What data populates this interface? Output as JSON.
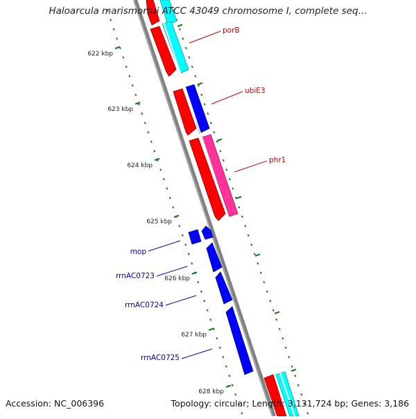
{
  "title": "Haloarcula marismortui ATCC 43049 chromosome I, complete seq...",
  "footer": {
    "accession_label": "Accession:",
    "accession": "NC_006396",
    "topology_label": "Topology:",
    "topology": "circular",
    "length_label": "Length:",
    "length": "3,131,724 bp",
    "genes_label": "Genes:",
    "genes": "3,186"
  },
  "colors": {
    "backbone": "#808080",
    "tick": "#1a7a1a",
    "label_forward": "#cc0000",
    "label_reverse": "#0000bb",
    "red": "#ff0000",
    "cyan": "#00ffff",
    "blue": "#0000ff",
    "magenta": "#ff3399"
  },
  "ticks": [
    {
      "label": "622 kbp"
    },
    {
      "label": "623 kbp"
    },
    {
      "label": "624 kbp"
    },
    {
      "label": "625 kbp"
    },
    {
      "label": "626 kbp"
    },
    {
      "label": "627 kbp"
    },
    {
      "label": "628 kbp"
    }
  ],
  "gene_labels": [
    {
      "name": "porB",
      "strand": "forward"
    },
    {
      "name": "ubiE3",
      "strand": "forward"
    },
    {
      "name": "phr1",
      "strand": "forward"
    },
    {
      "name": "mop",
      "strand": "reverse"
    },
    {
      "name": "rrnAC0723",
      "strand": "reverse"
    },
    {
      "name": "rrnAC0724",
      "strand": "reverse"
    },
    {
      "name": "rrnAC0725",
      "strand": "reverse"
    }
  ]
}
